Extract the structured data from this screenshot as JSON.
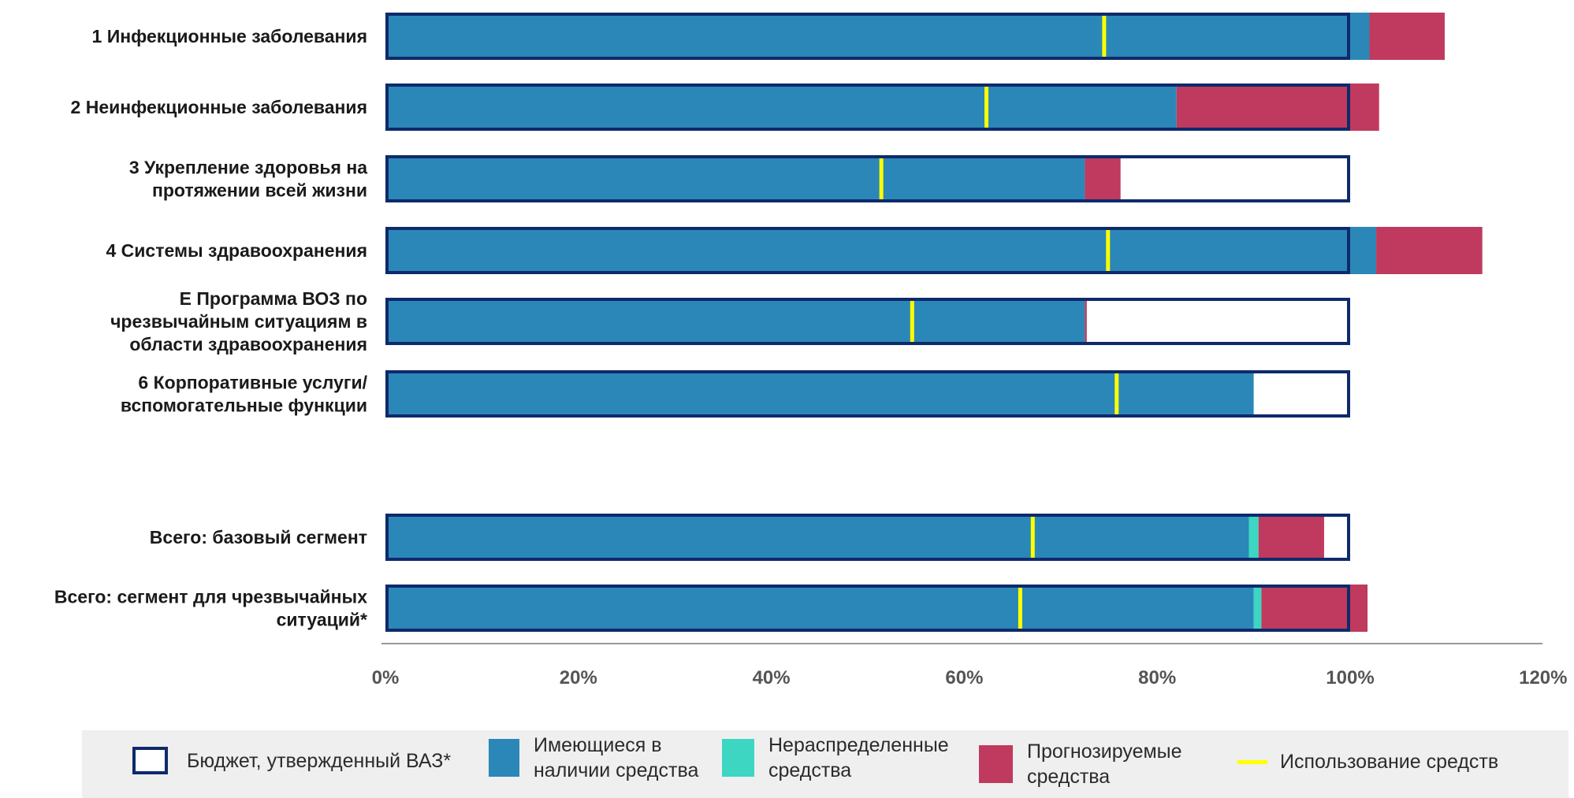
{
  "chart_data": {
    "type": "bar",
    "orientation": "horizontal",
    "stacked": true,
    "xlim": [
      0,
      1.2
    ],
    "x_ticks": [
      "0%",
      "20%",
      "40%",
      "60%",
      "80%",
      "100%",
      "120%"
    ],
    "categories": [
      [
        "1 Инфекционные заболевания"
      ],
      [
        "2 Неинфекционные заболевания"
      ],
      [
        "3 Укрепление здоровья на",
        "протяжении всей жизни"
      ],
      [
        "4 Системы здравоохранения"
      ],
      [
        "E Программа ВОЗ по",
        "чрезвычайным ситуациям в",
        "области здравоохранения"
      ],
      [
        "6 Корпоративные услуги/",
        "вспомогательные функции"
      ],
      [
        "Всего: базовый сегмент"
      ],
      [
        "Всего: сегмент для чрезвычайных",
        "ситуаций*"
      ]
    ],
    "series": [
      {
        "name": "Имеющиеся в наличии средства",
        "color": "#2b87b7",
        "values": [
          1.02,
          0.82,
          0.725,
          1.027,
          0.725,
          0.9,
          0.895,
          0.9
        ]
      },
      {
        "name": "Нераспределенные средства",
        "color": "#3dd6c2",
        "values": [
          0,
          0,
          0,
          0,
          0,
          0,
          0.01,
          0.008
        ]
      },
      {
        "name": "Прогнозируемые средства",
        "color": "#bf3a5e",
        "values": [
          0.078,
          0.21,
          0.037,
          0.11,
          0.002,
          0,
          0.068,
          0.11
        ]
      }
    ],
    "approved_budget": {
      "name": "Бюджет, утвержденный ВАЗ*",
      "color": "#0e2a6b",
      "values": [
        1,
        1,
        1,
        1,
        1,
        1,
        1,
        1
      ]
    },
    "utilization": {
      "name": "Использование средств",
      "color": "#ffff00",
      "values": [
        0.745,
        0.623,
        0.514,
        0.749,
        0.546,
        0.758,
        0.671,
        0.658
      ]
    },
    "legend_position": "bottom",
    "grid": false
  },
  "legend": [
    {
      "key": "budget",
      "lines": [
        "Бюджет, утвержденный ВАЗ*"
      ]
    },
    {
      "key": "available",
      "lines": [
        "Имеющиеся в",
        "наличии средства"
      ]
    },
    {
      "key": "unallocated",
      "lines": [
        "Нераспределенные",
        "средства"
      ]
    },
    {
      "key": "projected",
      "lines": [
        "Прогнозируемые",
        "средства"
      ]
    },
    {
      "key": "usage",
      "lines": [
        "Использование средств"
      ]
    }
  ]
}
